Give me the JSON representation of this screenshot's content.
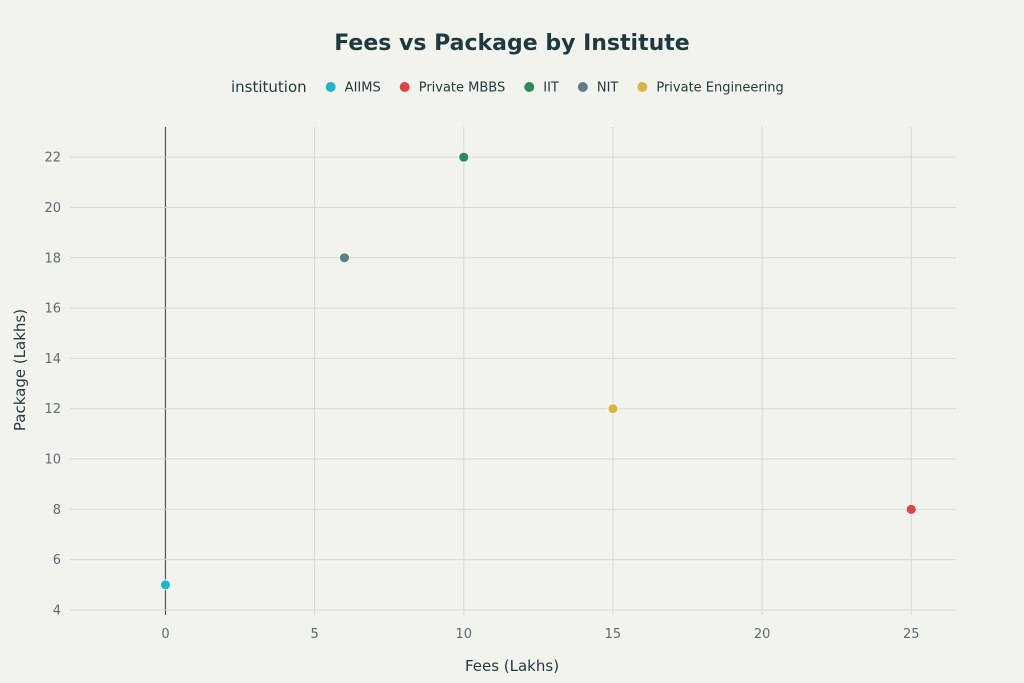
{
  "chart_data": {
    "type": "scatter",
    "title": "Fees vs Package by Institute",
    "xlabel": "Fees (Lakhs)",
    "ylabel": "Package (Lakhs)",
    "legend_title": "institution",
    "legend_position": "top",
    "grid": true,
    "xlim": [
      -3.2,
      26.5
    ],
    "ylim": [
      3.8,
      23.2
    ],
    "xticks": [
      0,
      5,
      10,
      15,
      20,
      25
    ],
    "yticks": [
      4,
      6,
      8,
      10,
      12,
      14,
      16,
      18,
      20,
      22
    ],
    "series": [
      {
        "name": "AIIMS",
        "color": "#1fb5cf",
        "x": [
          0
        ],
        "y": [
          5
        ]
      },
      {
        "name": "Private MBBS",
        "color": "#db4545",
        "x": [
          25
        ],
        "y": [
          8
        ]
      },
      {
        "name": "IIT",
        "color": "#2e8b57",
        "x": [
          10
        ],
        "y": [
          22
        ]
      },
      {
        "name": "NIT",
        "color": "#5d7f8a",
        "x": [
          6
        ],
        "y": [
          18
        ]
      },
      {
        "name": "Private Engineering",
        "color": "#d8b545",
        "x": [
          15
        ],
        "y": [
          12
        ]
      }
    ]
  }
}
